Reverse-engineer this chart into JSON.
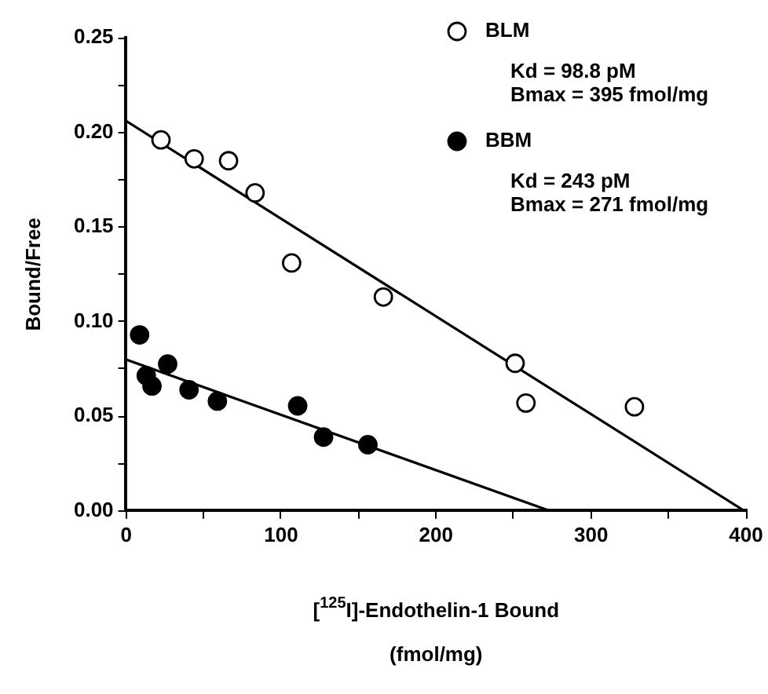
{
  "chart_data": {
    "type": "scatter",
    "xlabel": "[$^{125}$I]-Endothelin-1 Bound\n(fmol/mg)",
    "ylabel": "Bound/Free",
    "xlim": [
      0,
      400
    ],
    "xticks": [
      0,
      {
        "value": 50,
        "label": null
      },
      100,
      {
        "value": 150,
        "label": null
      },
      200,
      {
        "value": 250,
        "label": null
      },
      300,
      {
        "value": 350,
        "label": null
      },
      400
    ],
    "ylim": [
      0,
      0.25
    ],
    "yticks": [
      {
        "value": 0,
        "label": "0.00"
      },
      {
        "value": 0.025,
        "label": null
      },
      0.05,
      {
        "value": 0.075,
        "label": null
      },
      {
        "value": 0.1,
        "label": "0.10"
      },
      {
        "value": 0.125,
        "label": null
      },
      0.15,
      {
        "value": 0.175,
        "label": null
      },
      {
        "value": 0.2,
        "label": "0.20"
      },
      {
        "value": 0.225,
        "label": null
      },
      0.25
    ],
    "grid": false,
    "legend": "top right",
    "marker": "circle",
    "annotations": [
      "Kd = 98.8 pM\nBmax = 395 fmol/mg",
      "Kd = 243 pM\nBmax = 271 fmol/mg"
    ],
    "series": [
      {
        "name": "BLM",
        "color": "#ffffff",
        "x": [
          22.5,
          43.9,
          66.1,
          83.2,
          106.8,
          166,
          251,
          258,
          328
        ],
        "values": [
          0.196,
          0.186,
          0.185,
          0.168,
          0.131,
          0.113,
          0.078,
          0.057,
          0.055
        ]
      },
      {
        "name": "BBM",
        "color": "#000000",
        "x": [
          8.7,
          13,
          16.7,
          26.8,
          40.6,
          58.9,
          110.7,
          127.4,
          156
        ],
        "values": [
          0.093,
          0.0715,
          0.066,
          0.0776,
          0.064,
          0.058,
          0.0555,
          0.039,
          0.035
        ]
      },
      {
        "type": "line",
        "color": "#000000",
        "marker": "none",
        "x": [
          0,
          399
        ],
        "values": [
          0.206,
          0
        ]
      },
      {
        "type": "line",
        "color": "#000000",
        "marker": "none",
        "x": [
          0,
          273.5
        ],
        "values": [
          0.08,
          0
        ]
      }
    ]
  }
}
